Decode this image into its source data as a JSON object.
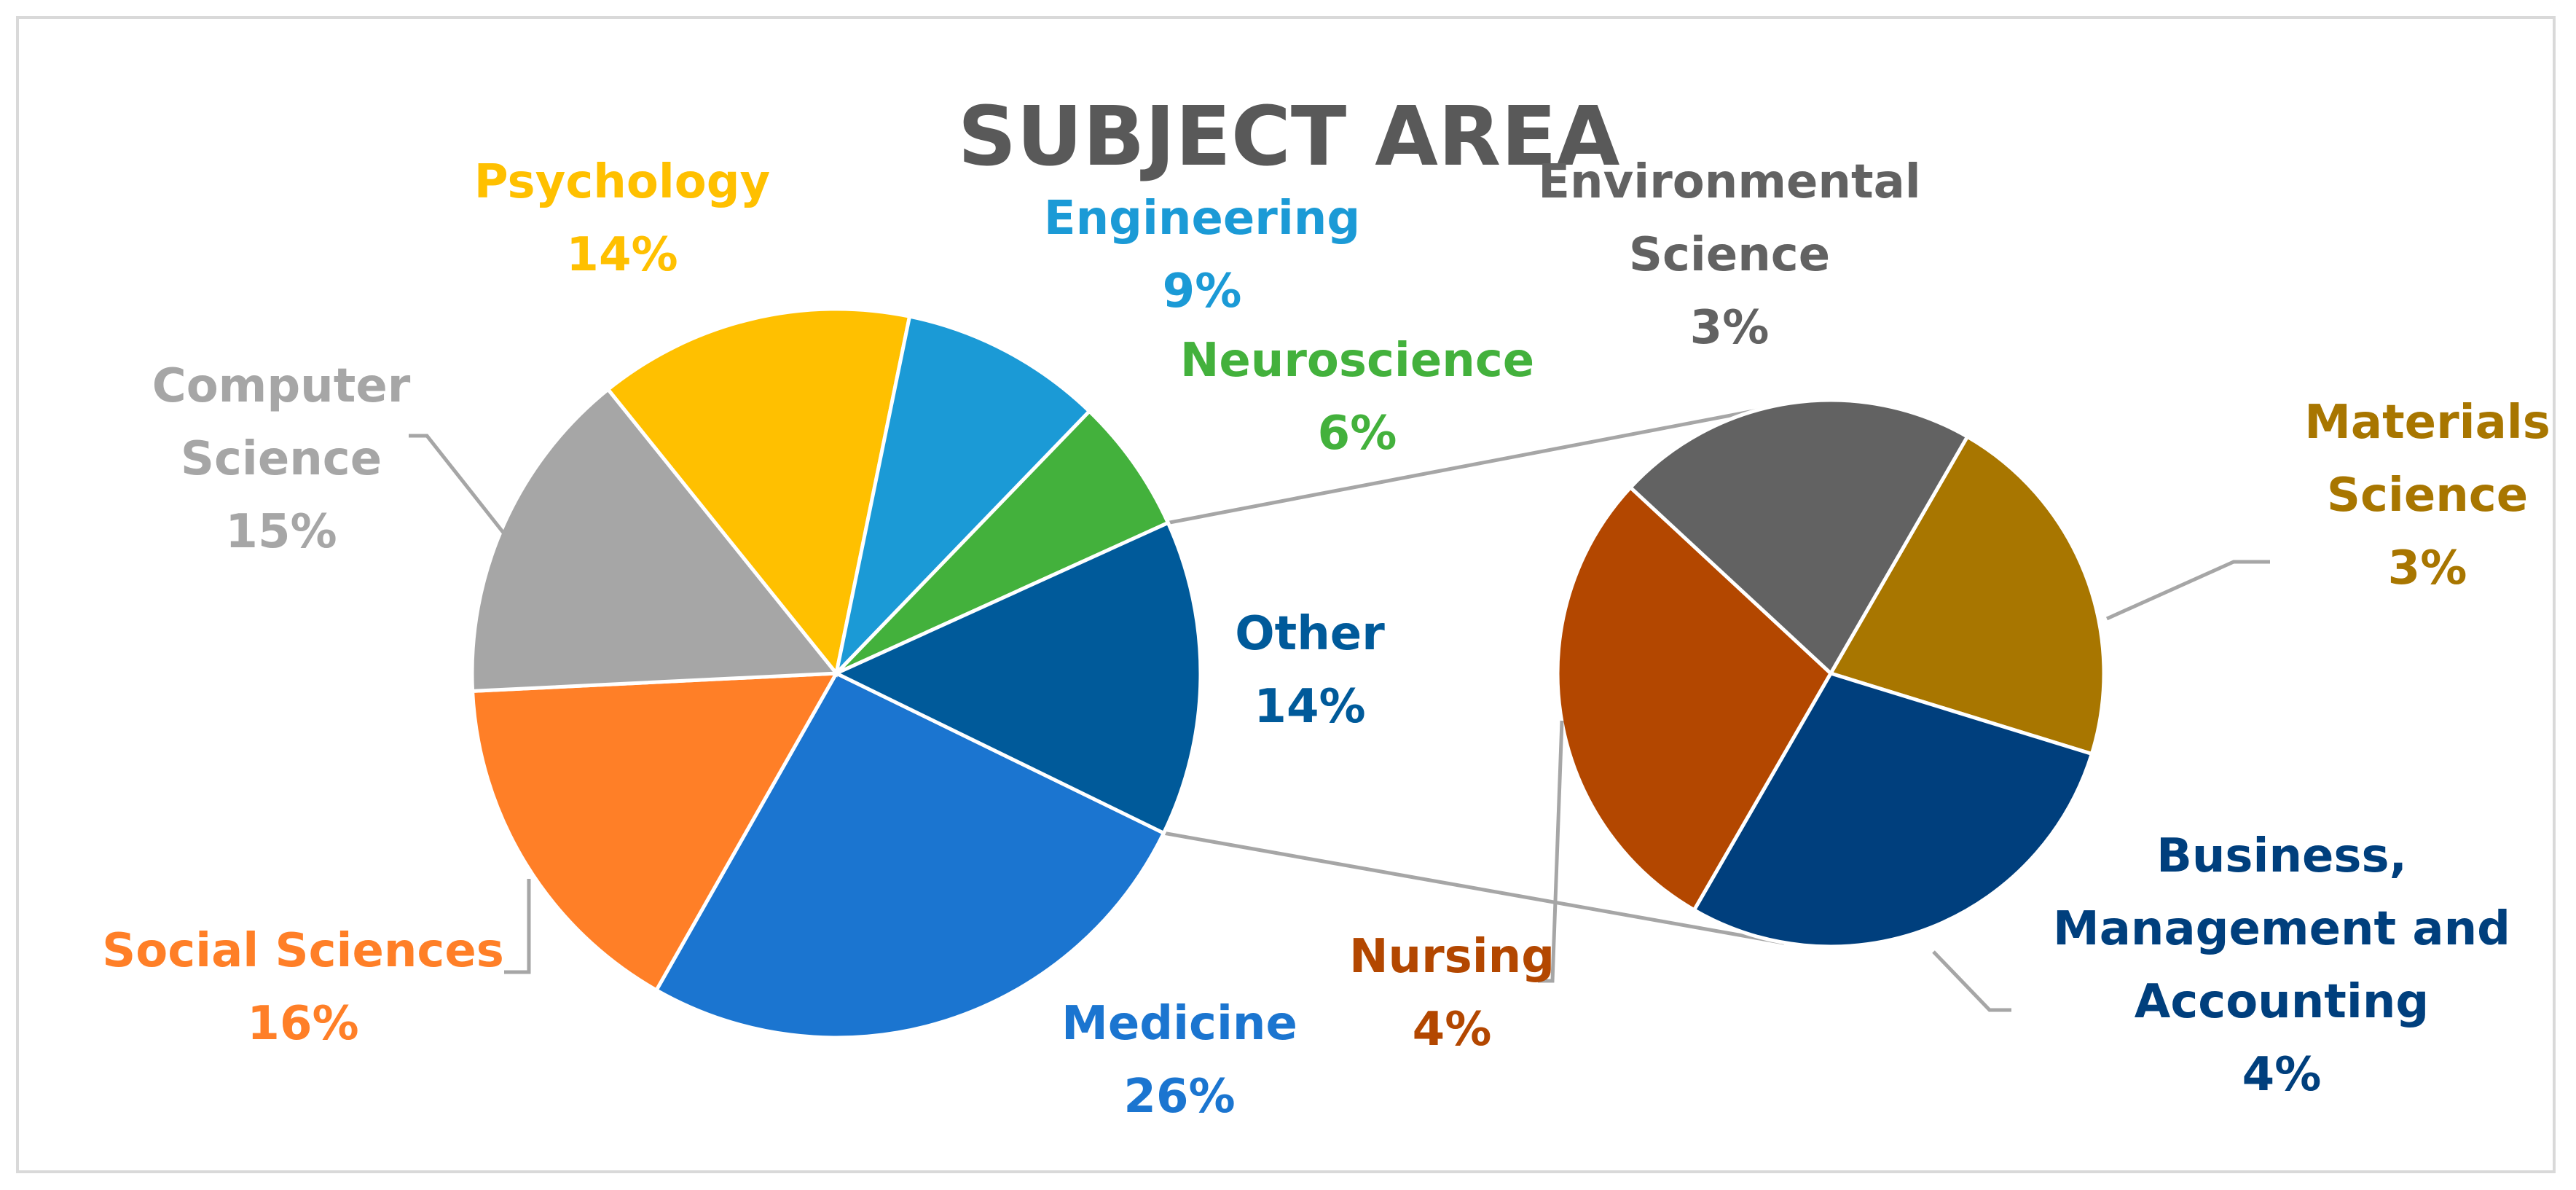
{
  "chart_data": {
    "type": "pie",
    "subtype": "pie-of-pie",
    "title": "SUBJECT AREA",
    "main_pie": [
      {
        "label": "Medicine",
        "value": 26,
        "display": "26%",
        "color": "#1b75d0"
      },
      {
        "label": "Social Sciences",
        "value": 16,
        "display": "16%",
        "color": "#ff7f27"
      },
      {
        "label": "Computer Science",
        "value": 15,
        "display": "15%",
        "color": "#a6a6a6"
      },
      {
        "label": "Psychology",
        "value": 14,
        "display": "14%",
        "color": "#ffc000"
      },
      {
        "label": "Engineering",
        "value": 9,
        "display": "9%",
        "color": "#1b9ad6"
      },
      {
        "label": "Neuroscience",
        "value": 6,
        "display": "6%",
        "color": "#43b13c"
      },
      {
        "label": "Other",
        "value": 14,
        "display": "14%",
        "color": "#005a9a"
      }
    ],
    "secondary_pie": [
      {
        "label": "Materials Science",
        "value": 3,
        "display": "3%",
        "color": "#a87600"
      },
      {
        "label": "Business, Management and Accounting",
        "value": 4,
        "display": "4%",
        "color": "#003f7d"
      },
      {
        "label": "Nursing",
        "value": 4,
        "display": "4%",
        "color": "#b34700"
      },
      {
        "label": "Environmental Science",
        "value": 3,
        "display": "3%",
        "color": "#626262"
      }
    ],
    "label_lines": {
      "Medicine": [
        "Medicine"
      ],
      "Social Sciences": [
        "Social Sciences"
      ],
      "Computer Science": [
        "Computer",
        "Science"
      ],
      "Psychology": [
        "Psychology"
      ],
      "Engineering": [
        "Engineering"
      ],
      "Neuroscience": [
        "Neuroscience"
      ],
      "Other": [
        "Other"
      ],
      "Materials Science": [
        "Materials",
        "Science"
      ],
      "Business, Management and Accounting": [
        "Business,",
        "Management and",
        "Accounting"
      ],
      "Nursing": [
        "Nursing"
      ],
      "Environmental Science": [
        "Environmental",
        "Science"
      ]
    },
    "legend": "none"
  }
}
